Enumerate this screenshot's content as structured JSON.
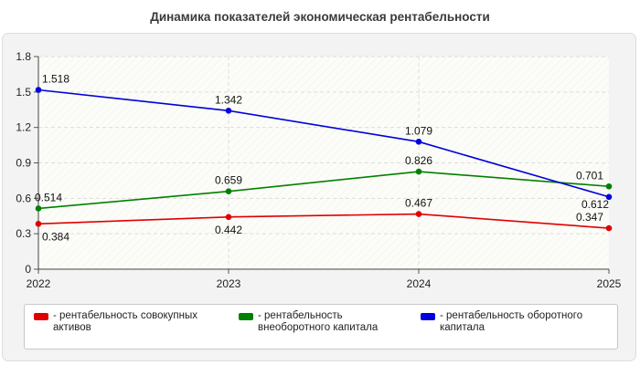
{
  "chart_data": {
    "type": "line",
    "title": "Динамика показателей экономическая рентабельности",
    "x": [
      "2022",
      "2023",
      "2024",
      "2025"
    ],
    "ylim": [
      0,
      1.8
    ],
    "yticks": [
      "0",
      "0.3",
      "0.6",
      "0.9",
      "1.2",
      "1.5",
      "1.8"
    ],
    "grid": true,
    "legend_position": "bottom",
    "series": [
      {
        "name": "- рентабельность совокупных активов",
        "color": "#e00000",
        "values": [
          0.384,
          0.442,
          0.467,
          0.347
        ],
        "labels": [
          "0.384",
          "0.442",
          "0.467",
          "0.347"
        ]
      },
      {
        "name": "- рентабельность внеоборотного капитала",
        "color": "#008000",
        "values": [
          0.514,
          0.659,
          0.826,
          0.701
        ],
        "labels": [
          "0.514",
          "0.659",
          "0.826",
          "0.701"
        ]
      },
      {
        "name": "- рентабельность оборотного капитала",
        "color": "#0000dd",
        "values": [
          1.518,
          1.342,
          1.079,
          0.612
        ],
        "labels": [
          "1.518",
          "1.342",
          "1.079",
          "0.612"
        ]
      }
    ]
  }
}
